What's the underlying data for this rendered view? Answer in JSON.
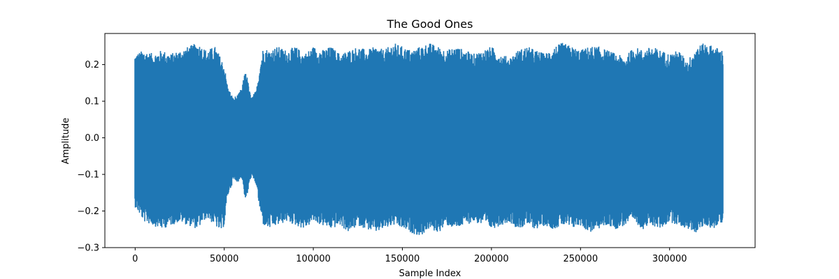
{
  "chart_data": {
    "type": "line",
    "title": "The Good Ones",
    "xlabel": "Sample Index",
    "ylabel": "Amplitude",
    "xlim": [
      -17000,
      348000
    ],
    "ylim": [
      -0.3,
      0.285
    ],
    "x_ticks": [
      0,
      50000,
      100000,
      150000,
      200000,
      250000,
      300000
    ],
    "x_tick_labels": [
      "0",
      "50000",
      "100000",
      "150000",
      "200000",
      "250000",
      "300000"
    ],
    "y_ticks": [
      -0.3,
      -0.2,
      -0.1,
      0.0,
      0.1,
      0.2
    ],
    "y_tick_labels": [
      "−0.3",
      "−0.2",
      "−0.1",
      "0.0",
      "0.1",
      "0.2"
    ],
    "grid": false,
    "legend": "none",
    "series": [
      {
        "color": "#1f77b4",
        "x": [
          0,
          5000,
          10000,
          15000,
          20000,
          25000,
          30000,
          35000,
          40000,
          45000,
          48000,
          50000,
          52000,
          55000,
          58000,
          60000,
          62000,
          65000,
          68000,
          70000,
          72000,
          75000,
          80000,
          85000,
          90000,
          95000,
          100000,
          105000,
          110000,
          115000,
          120000,
          125000,
          130000,
          135000,
          140000,
          145000,
          150000,
          155000,
          160000,
          165000,
          170000,
          175000,
          180000,
          185000,
          190000,
          195000,
          200000,
          205000,
          210000,
          215000,
          220000,
          225000,
          230000,
          235000,
          240000,
          245000,
          250000,
          255000,
          260000,
          265000,
          270000,
          275000,
          280000,
          285000,
          290000,
          295000,
          300000,
          305000,
          310000,
          315000,
          320000,
          325000,
          330000
        ],
        "upper": [
          0.23,
          0.24,
          0.23,
          0.24,
          0.23,
          0.24,
          0.25,
          0.26,
          0.24,
          0.25,
          0.22,
          0.2,
          0.14,
          0.11,
          0.12,
          0.14,
          0.19,
          0.11,
          0.13,
          0.2,
          0.25,
          0.24,
          0.25,
          0.24,
          0.25,
          0.23,
          0.25,
          0.24,
          0.25,
          0.23,
          0.24,
          0.25,
          0.24,
          0.25,
          0.24,
          0.26,
          0.25,
          0.24,
          0.25,
          0.26,
          0.25,
          0.24,
          0.25,
          0.24,
          0.23,
          0.24,
          0.25,
          0.23,
          0.22,
          0.24,
          0.25,
          0.24,
          0.23,
          0.25,
          0.26,
          0.25,
          0.24,
          0.25,
          0.25,
          0.24,
          0.23,
          0.22,
          0.25,
          0.24,
          0.25,
          0.24,
          0.23,
          0.24,
          0.21,
          0.25,
          0.26,
          0.25,
          0.24
        ],
        "lower": [
          -0.19,
          -0.23,
          -0.24,
          -0.25,
          -0.24,
          -0.23,
          -0.24,
          -0.25,
          -0.22,
          -0.24,
          -0.26,
          -0.24,
          -0.16,
          -0.12,
          -0.12,
          -0.11,
          -0.18,
          -0.11,
          -0.13,
          -0.2,
          -0.24,
          -0.25,
          -0.24,
          -0.23,
          -0.24,
          -0.25,
          -0.23,
          -0.24,
          -0.25,
          -0.24,
          -0.26,
          -0.24,
          -0.25,
          -0.26,
          -0.25,
          -0.24,
          -0.25,
          -0.26,
          -0.27,
          -0.25,
          -0.26,
          -0.24,
          -0.25,
          -0.24,
          -0.23,
          -0.24,
          -0.25,
          -0.24,
          -0.23,
          -0.25,
          -0.24,
          -0.25,
          -0.24,
          -0.25,
          -0.24,
          -0.25,
          -0.24,
          -0.26,
          -0.25,
          -0.24,
          -0.25,
          -0.24,
          -0.23,
          -0.25,
          -0.24,
          -0.25,
          -0.23,
          -0.24,
          -0.25,
          -0.26,
          -0.24,
          -0.25,
          -0.23
        ]
      }
    ]
  }
}
